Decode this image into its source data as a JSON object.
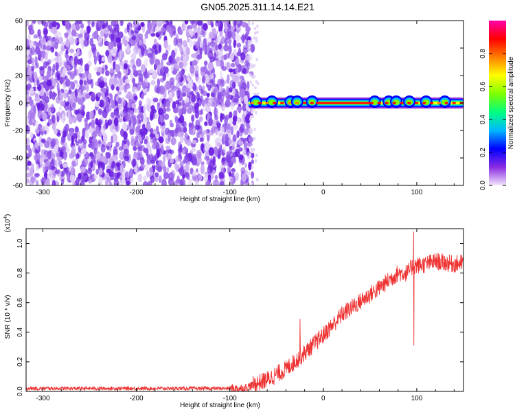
{
  "title": "GN05.2025.311.14.14.E21",
  "colors": {
    "snr_line": "#ee3333",
    "noise_purple": [
      "#e4d4f8",
      "#c9a8f2",
      "#a878ec",
      "#8a4ee6",
      "#6a1fe0"
    ],
    "colormap": [
      "#f2e6fb",
      "#8a2be2",
      "#0000ff",
      "#00b7ff",
      "#00ff7f",
      "#7fff00",
      "#ffff00",
      "#ff7f00",
      "#ff0000",
      "#ff00aa"
    ]
  },
  "chart_data": [
    {
      "type": "heatmap",
      "xlabel": "Height of straight line (km)",
      "ylabel": "Frequency (Hz)",
      "xlim": [
        -318,
        150
      ],
      "ylim": [
        -60,
        60
      ],
      "x_ticks": [
        -300,
        -200,
        -100,
        0,
        100
      ],
      "y_ticks": [
        -60,
        -40,
        -20,
        0,
        20,
        40,
        60
      ],
      "x_tick_labels": [
        "-300",
        "-200",
        "-100",
        "0",
        "100"
      ],
      "y_tick_labels": [
        "-60",
        "-40",
        "-20",
        "0",
        "20",
        "40",
        "60"
      ],
      "noise_region_x": [
        -318,
        -80
      ],
      "signal_region_x": [
        -80,
        150
      ],
      "signal_frequency_hz": 0,
      "colorbar": {
        "label": "Normalized spectral amplitude",
        "range": [
          0,
          1
        ],
        "ticks": [
          0.0,
          0.2,
          0.4,
          0.6,
          0.8
        ],
        "tick_labels": [
          "0.0",
          "0.2",
          "0.4",
          "0.6",
          "0.8"
        ]
      }
    },
    {
      "type": "line",
      "xlabel": "Height of straight line (km)",
      "ylabel": "SNR (10 * v/v)",
      "multiplier_label": "(x10",
      "multiplier_exp": "4",
      "xlim": [
        -318,
        150
      ],
      "ylim": [
        0,
        1.1
      ],
      "x_ticks": [
        -300,
        -200,
        -100,
        0,
        100
      ],
      "y_ticks": [
        0.0,
        0.2,
        0.4,
        0.6,
        0.8,
        1.0
      ],
      "x_tick_labels": [
        "-300",
        "-200",
        "-100",
        "0",
        "100"
      ],
      "y_tick_labels": [
        "0.0",
        "0.2",
        "0.4",
        "0.6",
        "0.8",
        "1.0"
      ],
      "series": [
        {
          "x": [
            -318,
            -100,
            -85,
            -60,
            -40,
            -20,
            0,
            20,
            40,
            60,
            80,
            90,
            96,
            100,
            110,
            120,
            130,
            140,
            150
          ],
          "y": [
            0.02,
            0.02,
            0.02,
            0.08,
            0.15,
            0.26,
            0.38,
            0.52,
            0.61,
            0.7,
            0.8,
            0.8,
            0.85,
            0.85,
            0.86,
            0.88,
            0.87,
            0.86,
            0.87
          ],
          "spikes": [
            {
              "x": 96.5,
              "y": 1.08
            },
            {
              "x": 96.8,
              "y": 0.31
            },
            {
              "x": -25,
              "y": 0.49
            }
          ]
        }
      ]
    }
  ]
}
